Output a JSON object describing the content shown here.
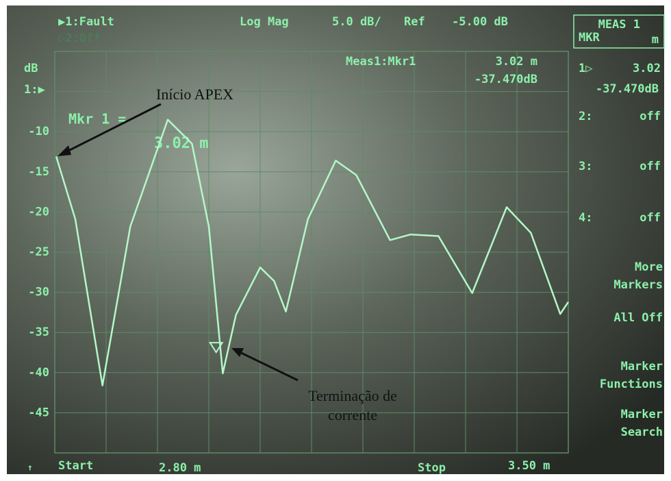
{
  "header": {
    "trace1": "▶1:Fault",
    "trace2": "▷2:Off",
    "format": "Log Mag",
    "scale": "5.0 dB/",
    "ref": "Ref",
    "ref_value": "-5.00 dB"
  },
  "meas_box": {
    "title": "MEAS 1",
    "sub": "MKR",
    "unit": "m"
  },
  "marker_readout": {
    "title": "Meas1:Mkr1",
    "x": "3.02 m",
    "y": "-37.470dB"
  },
  "marker_big": {
    "label": "Mkr 1 =",
    "value": "3.02 m"
  },
  "marker_list": [
    {
      "label": "1▷",
      "value": "3.02",
      "sub": "-37.470dB"
    },
    {
      "label": "2:",
      "value": "off"
    },
    {
      "label": "3:",
      "value": "off"
    },
    {
      "label": "4:",
      "value": "off"
    }
  ],
  "softkeys": [
    [
      "More",
      "Markers"
    ],
    [
      "All Off"
    ],
    [
      "Marker",
      "Functions"
    ],
    [
      "Marker",
      "Search"
    ]
  ],
  "footer": {
    "arrow": "↑",
    "start": "Start",
    "start_value": "2.80 m",
    "stop": "Stop",
    "stop_value": "3.50 m"
  },
  "chart_data": {
    "type": "line",
    "y_unit_label": "dB",
    "ref_marker": "1:▶",
    "xlim": [
      2.8,
      3.5
    ],
    "ylim": [
      -50,
      0
    ],
    "yticks": [
      -10,
      -15,
      -20,
      -25,
      -30,
      -35,
      -40,
      -45
    ],
    "grid": true,
    "color": "#b4f7c8",
    "x": [
      2.802,
      2.828,
      2.865,
      2.903,
      2.954,
      2.987,
      3.01,
      3.029,
      3.047,
      3.08,
      3.099,
      3.115,
      3.145,
      3.183,
      3.211,
      3.257,
      3.285,
      3.323,
      3.369,
      3.416,
      3.449,
      3.489,
      3.5
    ],
    "values": [
      -13.1,
      -20.9,
      -41.6,
      -21.8,
      -8.5,
      -11.5,
      -21.8,
      -40.1,
      -32.8,
      -26.9,
      -28.6,
      -32.4,
      -20.9,
      -13.6,
      -15.4,
      -23.5,
      -22.8,
      -23.0,
      -30.1,
      -19.4,
      -22.6,
      -32.7,
      -31.2
    ],
    "marker": {
      "x": 3.02,
      "y": -37.47
    },
    "annotations": [
      [
        "Início APEX"
      ],
      [
        "Terminação de",
        "corrente"
      ]
    ]
  }
}
